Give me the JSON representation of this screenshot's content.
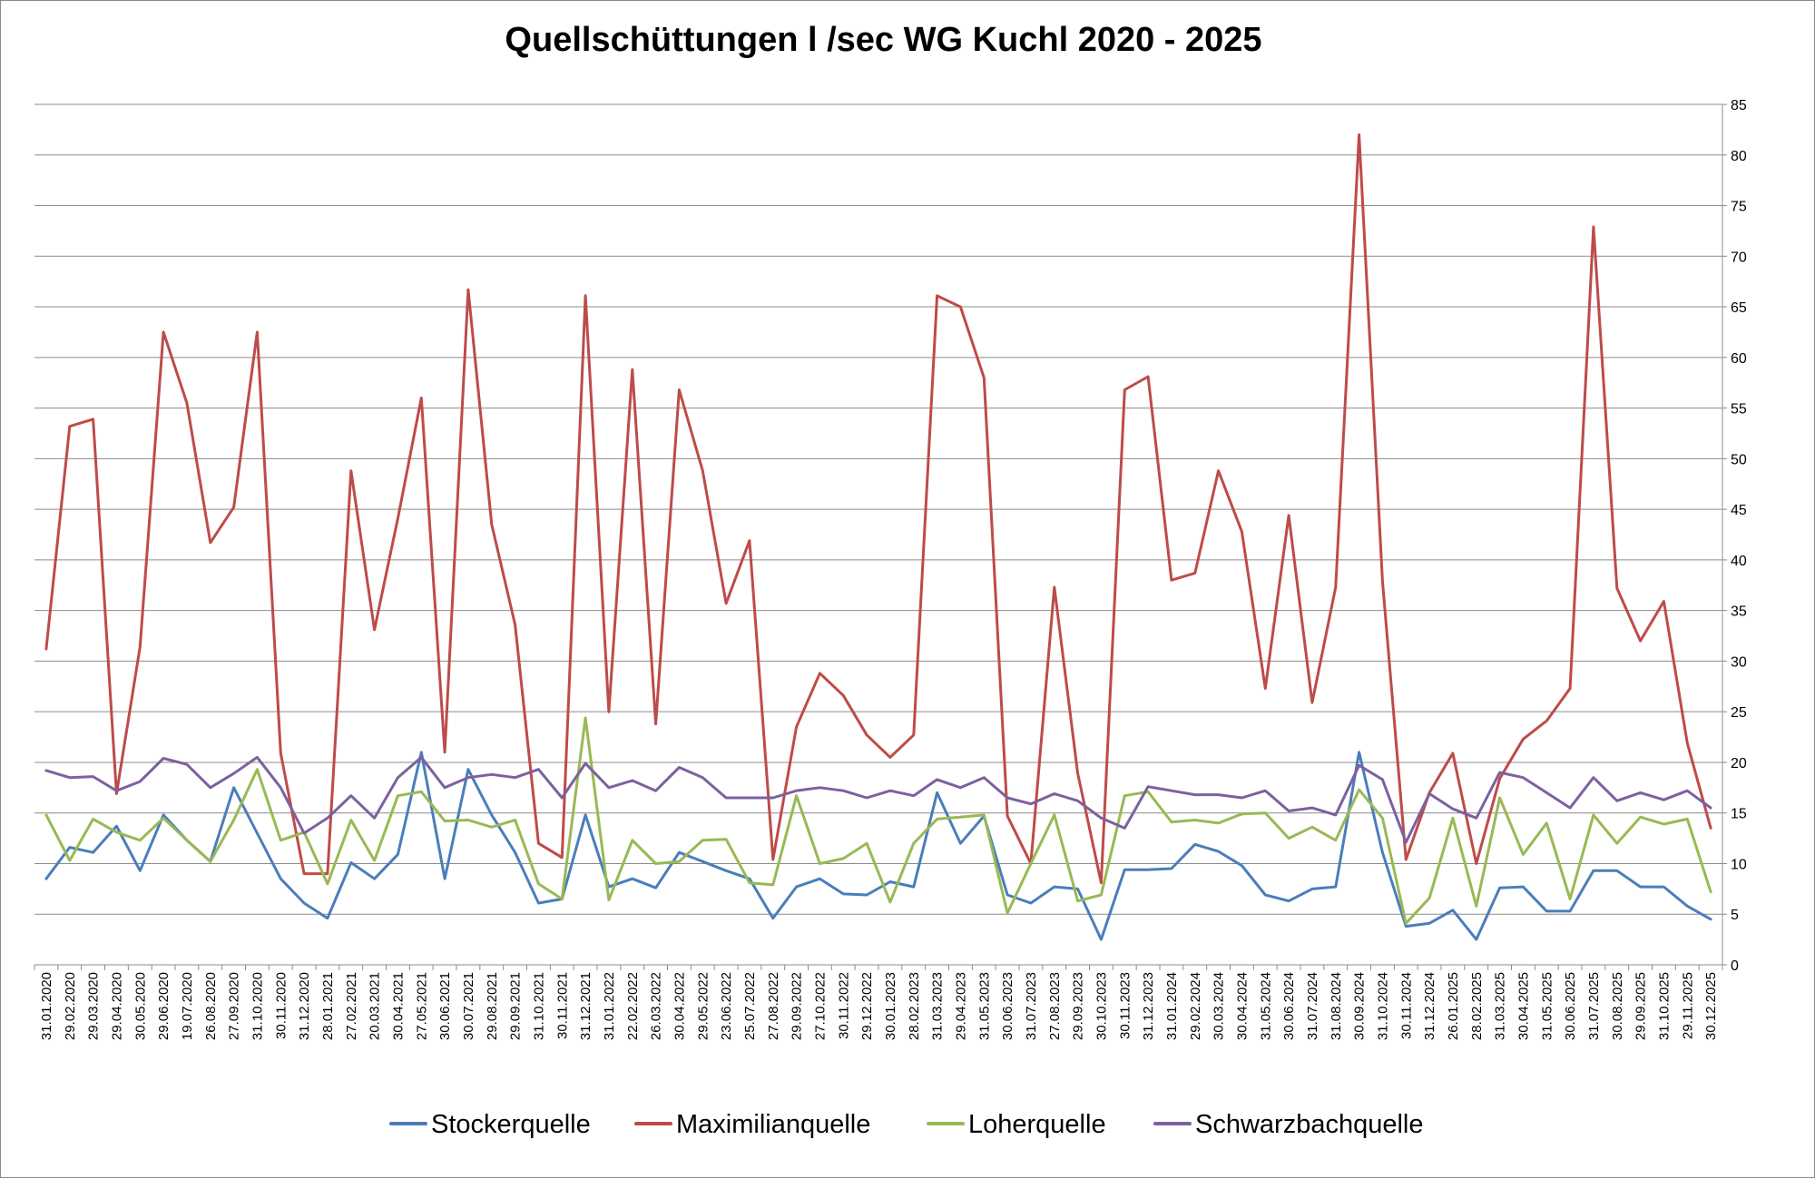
{
  "chart_data": {
    "type": "line",
    "title": "Quellschüttungen l /sec WG Kuchl 2020 - 2025",
    "xlabel": "",
    "ylabel": "",
    "ylim": [
      0,
      85
    ],
    "yticks": [
      0,
      5,
      10,
      15,
      20,
      25,
      30,
      35,
      40,
      45,
      50,
      55,
      60,
      65,
      70,
      75,
      80,
      85
    ],
    "y_axis_side": "right",
    "grid": "horizontal",
    "legend": "bottom",
    "categories": [
      "31.01.2020",
      "29.02.2020",
      "29.03.2020",
      "29.04.2020",
      "30.05.2020",
      "29.06.2020",
      "19.07.2020",
      "26.08.2020",
      "27.09.2020",
      "31.10.2020",
      "30.11.2020",
      "31.12.2020",
      "28.01.2021",
      "27.02.2021",
      "20.03.2021",
      "30.04.2021",
      "27.05.2021",
      "30.06.2021",
      "30.07.2021",
      "29.08.2021",
      "29.09.2021",
      "31.10.2021",
      "30.11.2021",
      "31.12.2021",
      "31.01.2022",
      "22.02.2022",
      "26.03.2022",
      "30.04.2022",
      "29.05.2022",
      "23.06.2022",
      "25.07.2022",
      "27.08.2022",
      "29.09.2022",
      "27.10.2022",
      "30.11.2022",
      "29.12.2022",
      "30.01.2023",
      "28.02.2023",
      "31.03.2023",
      "29.04.2023",
      "31.05.2023",
      "30.06.2023",
      "31.07.2023",
      "27.08.2023",
      "29.09.2023",
      "30.10.2023",
      "30.11.2023",
      "31.12.2023",
      "31.01.2024",
      "29.02.2024",
      "30.03.2024",
      "30.04.2024",
      "31.05.2024",
      "30.06.2024",
      "31.07.2024",
      "31.08.2024",
      "30.09.2024",
      "31.10.2024",
      "30.11.2024",
      "31.12.2024",
      "26.01.2025",
      "28.02.2025",
      "31.03.2025",
      "30.04.2025",
      "31.05.2025",
      "30.06.2025",
      "31.07.2025",
      "30.08.2025",
      "29.09.2025",
      "31.10.2025",
      "29.11.2025",
      "30.12.2025"
    ],
    "series": [
      {
        "name": "Stockerquelle",
        "color": "#4a7ebb",
        "values": [
          8.5,
          11.6,
          11.1,
          13.7,
          9.3,
          14.8,
          12.3,
          10.2,
          17.5,
          13.0,
          8.5,
          6.1,
          4.6,
          10.1,
          8.5,
          10.9,
          21.0,
          8.5,
          19.3,
          14.8,
          11.1,
          6.1,
          6.5,
          14.8,
          7.7,
          8.5,
          7.6,
          11.1,
          10.2,
          9.3,
          8.5,
          4.6,
          7.7,
          8.5,
          7.0,
          6.9,
          8.2,
          7.7,
          17.0,
          12.0,
          14.7,
          6.9,
          6.1,
          7.7,
          7.5,
          2.5,
          9.4,
          9.4,
          9.5,
          11.9,
          11.2,
          9.8,
          6.9,
          6.3,
          7.5,
          7.7,
          21.0,
          11.1,
          3.8,
          4.1,
          5.4,
          2.5,
          7.6,
          7.7,
          5.3,
          5.3,
          9.3,
          9.3,
          7.7,
          7.7,
          5.8,
          4.5
        ]
      },
      {
        "name": "Maximilianquelle",
        "color": "#be4b48",
        "values": [
          31.2,
          53.2,
          53.9,
          16.9,
          31.4,
          62.5,
          55.5,
          41.7,
          45.2,
          62.5,
          20.9,
          9.0,
          9.0,
          48.8,
          33.1,
          44.1,
          56.0,
          21.0,
          66.7,
          43.5,
          33.6,
          12.0,
          10.6,
          66.1,
          25.0,
          58.8,
          23.8,
          56.8,
          48.8,
          35.7,
          41.9,
          10.4,
          23.5,
          28.8,
          26.6,
          22.7,
          20.5,
          22.7,
          66.1,
          65.0,
          58.0,
          14.7,
          10.0,
          37.3,
          18.9,
          8.1,
          56.8,
          58.1,
          38.0,
          38.7,
          48.8,
          42.8,
          27.3,
          44.4,
          25.9,
          37.3,
          82.0,
          37.9,
          10.4,
          17.0,
          20.9,
          10.0,
          18.4,
          22.3,
          24.1,
          27.3,
          72.9,
          37.2,
          32.0,
          35.9,
          21.9,
          13.5
        ]
      },
      {
        "name": "Loherquelle",
        "color": "#98b954",
        "values": [
          14.8,
          10.3,
          14.4,
          13.1,
          12.3,
          14.5,
          12.3,
          10.2,
          14.3,
          19.3,
          12.3,
          13.1,
          8.0,
          14.3,
          10.3,
          16.7,
          17.1,
          14.2,
          14.3,
          13.6,
          14.3,
          8.0,
          6.5,
          24.4,
          6.4,
          12.3,
          10.0,
          10.2,
          12.3,
          12.4,
          8.1,
          7.9,
          16.7,
          10.0,
          10.5,
          12.0,
          6.2,
          12.0,
          14.4,
          14.6,
          14.8,
          5.1,
          10.0,
          14.8,
          6.3,
          6.9,
          16.7,
          17.1,
          14.1,
          14.3,
          14.0,
          14.9,
          15.0,
          12.5,
          13.6,
          12.3,
          17.3,
          14.5,
          4.1,
          6.6,
          14.5,
          5.8,
          16.5,
          10.9,
          14.0,
          6.5,
          14.8,
          12.0,
          14.6,
          13.9,
          14.4,
          7.2
        ]
      },
      {
        "name": "Schwarzbachquelle",
        "color": "#7d60a0",
        "values": [
          19.2,
          18.5,
          18.6,
          17.2,
          18.1,
          20.4,
          19.8,
          17.5,
          18.9,
          20.5,
          17.5,
          13.0,
          14.5,
          16.7,
          14.5,
          18.5,
          20.5,
          17.5,
          18.5,
          18.8,
          18.5,
          19.3,
          16.5,
          19.9,
          17.5,
          18.2,
          17.2,
          19.5,
          18.5,
          16.5,
          16.5,
          16.5,
          17.2,
          17.5,
          17.2,
          16.5,
          17.2,
          16.7,
          18.3,
          17.5,
          18.5,
          16.5,
          15.9,
          16.9,
          16.2,
          14.5,
          13.5,
          17.6,
          17.2,
          16.8,
          16.8,
          16.5,
          17.2,
          15.2,
          15.5,
          14.8,
          19.7,
          18.3,
          12.1,
          16.9,
          15.4,
          14.5,
          19.0,
          18.5,
          17.0,
          15.5,
          18.5,
          16.2,
          17.0,
          16.3,
          17.2,
          15.5
        ]
      }
    ]
  }
}
